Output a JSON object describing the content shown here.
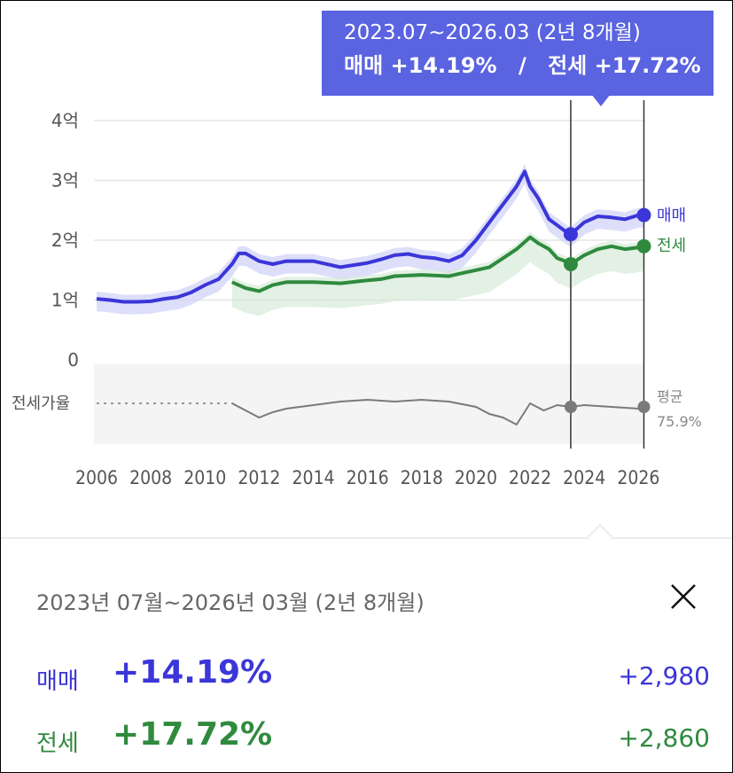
{
  "colors": {
    "sale": "#3b36d8",
    "jeonse": "#2f8a3e",
    "ratio": "#7a7a7a",
    "tooltip_bg": "#5a63e0"
  },
  "tooltip": {
    "period": "2023.07~2026.03 (2년 8개월)",
    "sale_label": "매매",
    "sale_change": "+14.19%",
    "separator": "/",
    "jeonse_label": "전세",
    "jeonse_change": "+17.72%"
  },
  "panel": {
    "period": "2023년 07월~2026년 03월 (2년 8개월)",
    "close_icon": "close-icon",
    "sale": {
      "label": "매매",
      "change": "+14.19%",
      "amount": "+2,980"
    },
    "jeonse": {
      "label": "전세",
      "change": "+17.72%",
      "amount": "+2,860"
    }
  },
  "chart_data": {
    "type": "line",
    "y_ticks": [
      "4억",
      "3억",
      "2억",
      "1억",
      "0"
    ],
    "y_tick_values": [
      4,
      3,
      2,
      1,
      0
    ],
    "ylim": [
      0,
      4
    ],
    "x_ticks": [
      "2006",
      "2008",
      "2010",
      "2012",
      "2014",
      "2016",
      "2018",
      "2020",
      "2022",
      "2024",
      "2026"
    ],
    "xlim": [
      2006,
      2026.25
    ],
    "selection": {
      "start": "2023.07",
      "end": "2026.03",
      "start_x": 2023.5,
      "end_x": 2026.2
    },
    "series": [
      {
        "name": "매매",
        "x": [
          2006,
          2006.5,
          2007,
          2007.5,
          2008,
          2008.5,
          2009,
          2009.5,
          2010,
          2010.5,
          2011,
          2011.25,
          2011.5,
          2012,
          2012.5,
          2013,
          2014,
          2015,
          2016,
          2016.5,
          2017,
          2017.5,
          2018,
          2018.5,
          2019,
          2019.5,
          2020,
          2020.5,
          2021,
          2021.5,
          2021.8,
          2022,
          2022.3,
          2022.7,
          2023,
          2023.3,
          2023.5,
          2024,
          2024.5,
          2025,
          2025.5,
          2026,
          2026.2
        ],
        "values": [
          1.02,
          1.0,
          0.97,
          0.97,
          0.98,
          1.02,
          1.05,
          1.13,
          1.25,
          1.35,
          1.6,
          1.78,
          1.78,
          1.65,
          1.6,
          1.65,
          1.65,
          1.55,
          1.62,
          1.68,
          1.75,
          1.77,
          1.72,
          1.7,
          1.65,
          1.75,
          2.0,
          2.3,
          2.6,
          2.9,
          3.15,
          2.9,
          2.7,
          2.35,
          2.25,
          2.15,
          2.1,
          2.3,
          2.4,
          2.38,
          2.35,
          2.42,
          2.42
        ]
      },
      {
        "name": "전세",
        "x": [
          2011,
          2011.5,
          2012,
          2012.5,
          2013,
          2014,
          2015,
          2016,
          2016.5,
          2017,
          2018,
          2019,
          2019.5,
          2020,
          2020.5,
          2021,
          2021.5,
          2022,
          2022.3,
          2022.7,
          2023,
          2023.3,
          2023.5,
          2024,
          2024.5,
          2025,
          2025.5,
          2026,
          2026.2
        ],
        "values": [
          1.3,
          1.2,
          1.15,
          1.25,
          1.3,
          1.3,
          1.28,
          1.33,
          1.35,
          1.4,
          1.42,
          1.4,
          1.45,
          1.5,
          1.55,
          1.7,
          1.85,
          2.05,
          1.95,
          1.85,
          1.7,
          1.65,
          1.6,
          1.75,
          1.85,
          1.9,
          1.85,
          1.88,
          1.9
        ]
      },
      {
        "name": "전세가율",
        "x": [
          2011,
          2011.5,
          2012,
          2012.5,
          2013,
          2014,
          2015,
          2016,
          2017,
          2018,
          2019,
          2020,
          2020.5,
          2021,
          2021.5,
          2022,
          2022.5,
          2023,
          2023.5,
          2024,
          2025,
          2026,
          2026.2
        ],
        "values": [
          78,
          74,
          70,
          73,
          75,
          77,
          79,
          80,
          79,
          80,
          79,
          76,
          72,
          70,
          66,
          78,
          74,
          77,
          76,
          77,
          76,
          75,
          76
        ]
      }
    ],
    "ratio_label": "전세가율",
    "ratio_avg_label": "평균",
    "ratio_avg_value": "75.9%"
  }
}
